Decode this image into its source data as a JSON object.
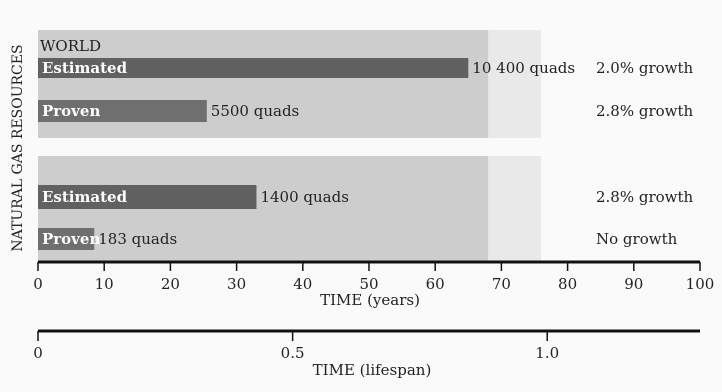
{
  "chart_data": {
    "type": "bar",
    "ylabel": "NATURAL GAS RESOURCES",
    "xlabel": "TIME (years)",
    "xlim": [
      0,
      100
    ],
    "xticks": [
      0,
      10,
      20,
      30,
      40,
      50,
      60,
      70,
      80,
      90,
      100
    ],
    "panels": [
      {
        "title": "WORLD",
        "bars": [
          {
            "label": "Estimated",
            "value": 65,
            "annotation": "10 400 quads",
            "growth": "2.0% growth"
          },
          {
            "label": "Proven",
            "value": 25.5,
            "annotation": "5500 quads",
            "growth": "2.8% growth"
          }
        ]
      },
      {
        "title": "",
        "bars": [
          {
            "label": "Estimated",
            "value": 33,
            "annotation": "1400 quads",
            "growth": "2.8% growth"
          },
          {
            "label": "Proven",
            "value": 8.5,
            "annotation": "183 quads",
            "growth": "No growth"
          }
        ]
      }
    ],
    "secondary_axis": {
      "label": "TIME (lifespan)",
      "lim": [
        0,
        1.3
      ],
      "ticks": [
        0,
        0.5,
        1.0
      ],
      "tick_labels": [
        "0",
        "0.5",
        "1.0"
      ]
    }
  },
  "colors": {
    "band_fill": "#c8c8c8",
    "bar_fill": "#3c3c3c",
    "bar_label": "#ffffff",
    "text": "#222222",
    "axis": "#111111"
  }
}
